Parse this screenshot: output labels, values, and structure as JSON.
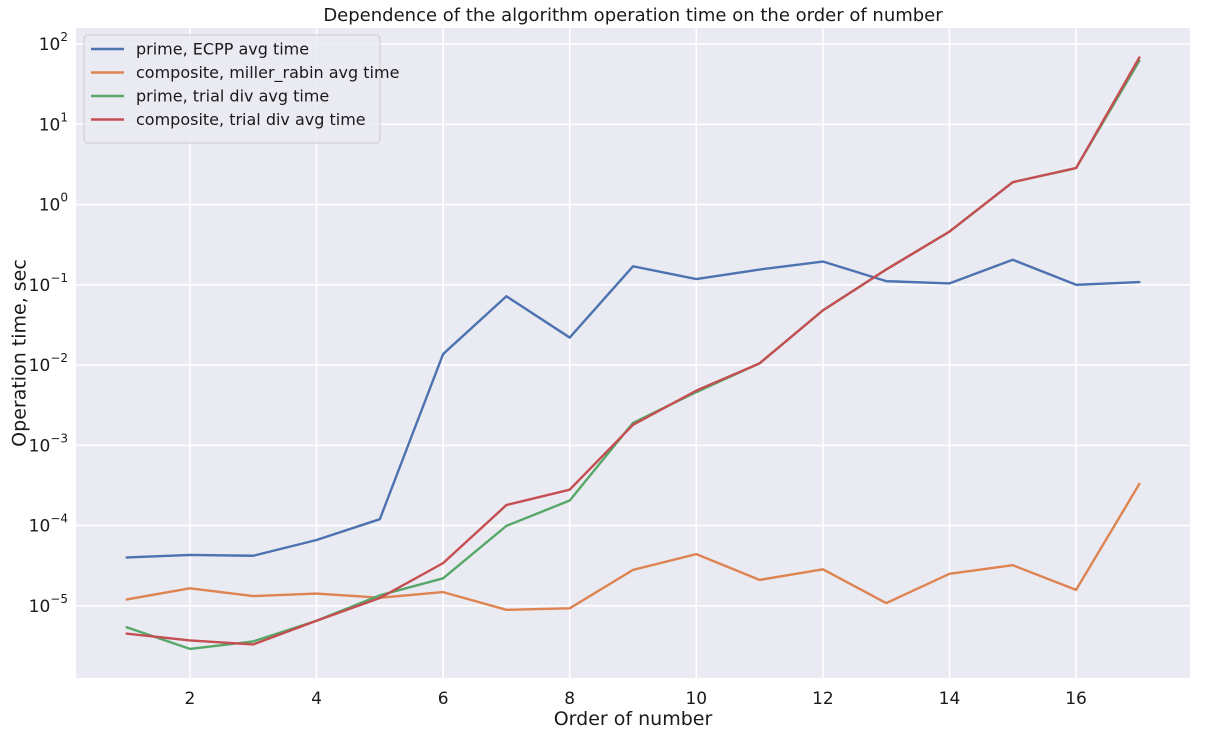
{
  "chart_data": {
    "type": "line",
    "title": "Dependence of the algorithm operation time on the order of number",
    "xlabel": "Order of number",
    "ylabel": "Operation time, sec",
    "yscale": "log",
    "xlim": [
      0.2,
      17.8
    ],
    "ylim_log10": [
      -5.9,
      2.2
    ],
    "xticks": [
      2,
      4,
      6,
      8,
      10,
      12,
      14,
      16
    ],
    "yticks_exp": [
      -5,
      -4,
      -3,
      -2,
      -1,
      0,
      1,
      2
    ],
    "grid": true,
    "legend_position": "top-left",
    "x": [
      1,
      2,
      3,
      4,
      5,
      6,
      7,
      8,
      9,
      10,
      11,
      12,
      13,
      14,
      15,
      16,
      17
    ],
    "series": [
      {
        "name": "prime, ECPP avg time",
        "color": "#4c72b0",
        "values": [
          4e-05,
          4.3e-05,
          4.2e-05,
          6.6e-05,
          0.00012,
          0.0137,
          0.072,
          0.022,
          0.17,
          0.118,
          0.155,
          0.195,
          0.111,
          0.104,
          0.205,
          0.1,
          0.108
        ]
      },
      {
        "name": "composite, miller_rabin avg time",
        "color": "#dd8452",
        "values": [
          1.2e-05,
          1.65e-05,
          1.32e-05,
          1.42e-05,
          1.26e-05,
          1.48e-05,
          8.9e-06,
          9.3e-06,
          2.8e-05,
          4.4e-05,
          2.1e-05,
          2.85e-05,
          1.08e-05,
          2.5e-05,
          3.2e-05,
          1.58e-05,
          0.00033
        ]
      },
      {
        "name": "prime, trial div avg time",
        "color": "#55a868",
        "values": [
          5.4e-06,
          2.9e-06,
          3.6e-06,
          6.5e-06,
          1.35e-05,
          2.2e-05,
          9.9e-05,
          0.000205,
          0.0019,
          0.0046,
          0.0105,
          0.048,
          0.155,
          0.46,
          1.9,
          2.85,
          62
        ]
      },
      {
        "name": "composite, trial div avg time",
        "color": "#c44e52",
        "values": [
          4.5e-06,
          3.7e-06,
          3.3e-06,
          6.5e-06,
          1.25e-05,
          3.4e-05,
          0.00018,
          0.00028,
          0.0018,
          0.0048,
          0.0105,
          0.048,
          0.155,
          0.46,
          1.9,
          2.85,
          68
        ]
      }
    ]
  }
}
